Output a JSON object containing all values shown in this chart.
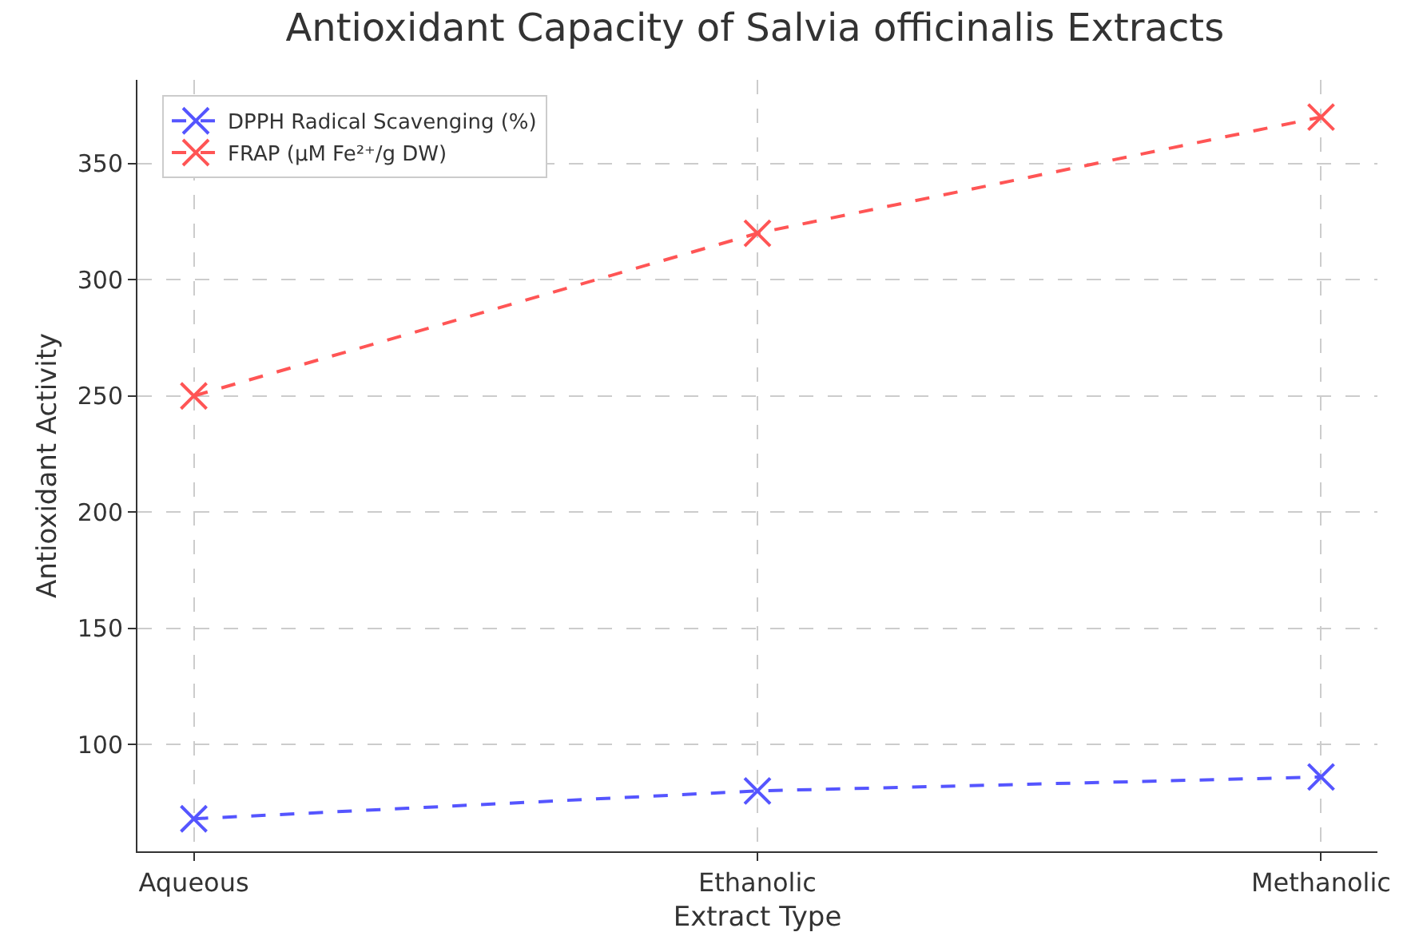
{
  "chart_data": {
    "type": "line",
    "title": "Antioxidant Capacity of Salvia officinalis Extracts",
    "xlabel": "Extract Type",
    "ylabel": "Antioxidant Activity",
    "categories": [
      "Aqueous",
      "Ethanolic",
      "Methanolic"
    ],
    "series": [
      {
        "name": "DPPH Radical Scavenging (%)",
        "color": "#5555ff",
        "values": [
          68,
          80,
          86
        ]
      },
      {
        "name": "FRAP (μM Fe²⁺/g DW)",
        "color": "#ff5555",
        "values": [
          250,
          320,
          370
        ]
      }
    ],
    "ylim": [
      54,
      386
    ],
    "yticks": [
      100,
      150,
      200,
      250,
      300,
      350
    ],
    "grid": true,
    "legend": "top left",
    "marker": "cross",
    "line_style": "dashed"
  }
}
